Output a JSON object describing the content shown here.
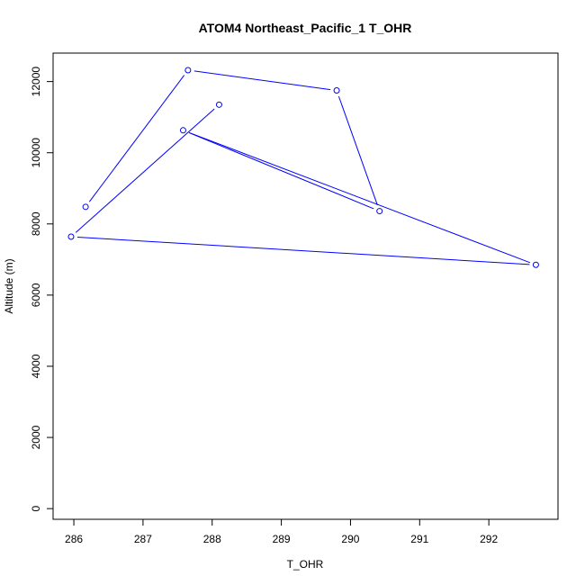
{
  "chart_data": {
    "type": "line",
    "title": "ATOM4 Northeast_Pacific_1 T_OHR",
    "xlabel": "T_OHR",
    "ylabel": "Altitude (m)",
    "xlim": [
      285.7,
      293.0
    ],
    "ylim": [
      -300,
      12800
    ],
    "xticks": [
      286,
      287,
      288,
      289,
      290,
      291,
      292
    ],
    "yticks": [
      0,
      2000,
      4000,
      6000,
      8000,
      10000,
      12000
    ],
    "grid": false,
    "legend": "none",
    "series": [
      {
        "color": "#0000ff",
        "marker": "open-circle",
        "points": [
          {
            "x": 286.17,
            "y": 8480
          },
          {
            "x": 287.65,
            "y": 12320
          },
          {
            "x": 289.8,
            "y": 11750
          },
          {
            "x": 290.42,
            "y": 8360
          },
          {
            "x": 287.58,
            "y": 10630
          },
          {
            "x": 292.68,
            "y": 6850
          },
          {
            "x": 285.96,
            "y": 7640
          },
          {
            "x": 288.1,
            "y": 11350
          }
        ]
      }
    ]
  }
}
